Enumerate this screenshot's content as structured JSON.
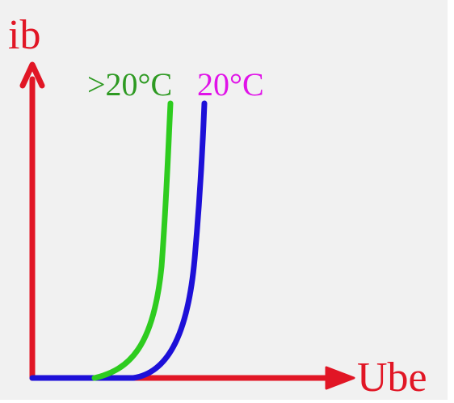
{
  "diagram": {
    "y_axis_label": "ib",
    "x_axis_label": "Ube",
    "curves": [
      {
        "label": ">20°C",
        "color": "#2ecc1f"
      },
      {
        "label": "20°C",
        "color": "#1d10d8"
      }
    ],
    "label_colors": {
      "hot": "#2e9a22",
      "room": "#e012e8",
      "axis": "#e11625"
    }
  }
}
